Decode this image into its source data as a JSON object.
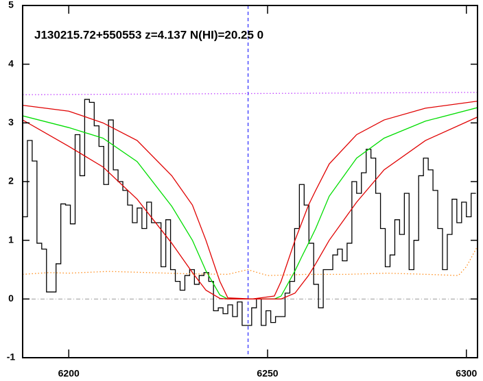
{
  "chart_data": {
    "type": "line",
    "title": "J130215.72+550553 z=4.137 N(HI)=20.25 0",
    "xlim": [
      6188.4,
      6302.8
    ],
    "ylim": [
      -1,
      5
    ],
    "xticks": [
      6200,
      6250,
      6300
    ],
    "yticks": [
      -1,
      0,
      1,
      2,
      3,
      4,
      5
    ],
    "series": [
      {
        "color": "#000000",
        "style": "step",
        "x": [
          6189.0,
          6190.2,
          6191.4,
          6192.6,
          6193.8,
          6195.0,
          6196.2,
          6197.4,
          6198.6,
          6199.8,
          6201.0,
          6202.2,
          6203.4,
          6204.6,
          6205.8,
          6207.0,
          6208.2,
          6209.4,
          6210.6,
          6211.8,
          6213.0,
          6214.2,
          6215.4,
          6216.6,
          6217.8,
          6219.0,
          6220.2,
          6221.4,
          6222.6,
          6223.8,
          6225.0,
          6226.2,
          6227.4,
          6228.6,
          6229.8,
          6231.0,
          6232.2,
          6233.4,
          6234.6,
          6235.8,
          6237.0,
          6238.2,
          6239.4,
          6240.6,
          6241.8,
          6243.0,
          6244.2,
          6245.4,
          6246.6,
          6247.8,
          6249.0,
          6250.2,
          6251.4,
          6252.6,
          6253.8,
          6255.0,
          6256.2,
          6257.4,
          6258.6,
          6259.8,
          6261.0,
          6262.2,
          6263.4,
          6264.6,
          6265.8,
          6267.0,
          6268.2,
          6269.4,
          6270.6,
          6271.8,
          6273.0,
          6274.2,
          6275.4,
          6276.6,
          6277.8,
          6279.0,
          6280.2,
          6281.4,
          6282.6,
          6283.8,
          6285.0,
          6286.2,
          6287.4,
          6288.6,
          6289.8,
          6291.0,
          6292.2,
          6293.4,
          6294.6,
          6295.8,
          6297.0,
          6298.2,
          6299.4,
          6300.6,
          6301.8
        ],
        "values": [
          1.4,
          2.7,
          2.35,
          0.95,
          0.85,
          0.12,
          0.12,
          0.6,
          1.62,
          1.6,
          1.28,
          2.8,
          2.1,
          3.4,
          3.35,
          2.95,
          2.6,
          1.95,
          3.05,
          2.2,
          2.0,
          1.85,
          1.6,
          1.3,
          1.55,
          1.2,
          1.65,
          1.3,
          1.3,
          0.55,
          1.35,
          0.5,
          0.3,
          0.15,
          0.4,
          0.5,
          0.25,
          0.4,
          0.45,
          0.3,
          -0.2,
          -0.15,
          -0.25,
          -0.1,
          -0.3,
          -0.05,
          -0.45,
          -0.45,
          -0.15,
          0.0,
          -0.45,
          -0.2,
          -0.4,
          -0.3,
          -0.3,
          0.1,
          0.3,
          1.2,
          1.95,
          1.6,
          0.95,
          0.25,
          -0.15,
          0.5,
          0.5,
          0.75,
          0.85,
          0.65,
          0.95,
          2.0,
          1.8,
          2.15,
          2.55,
          2.4,
          1.8,
          1.2,
          0.55,
          0.75,
          1.35,
          1.1,
          1.8,
          0.5,
          1.0,
          2.1,
          2.4,
          2.2,
          1.85,
          1.2,
          0.5,
          1.1,
          1.7,
          1.3,
          1.65,
          1.4,
          1.8
        ]
      },
      {
        "color": "#00dd00",
        "style": "solid",
        "x": [
          6188.4,
          6200,
          6208.6,
          6217.2,
          6225.9,
          6231.1,
          6234.5,
          6238,
          6240,
          6246,
          6251.7,
          6253.4,
          6256.9,
          6258.6,
          6260.3,
          6262.1,
          6265.5,
          6272.4,
          6279.3,
          6289.7,
          6302.8
        ],
        "values": [
          3.12,
          2.92,
          2.74,
          2.34,
          1.58,
          1.0,
          0.48,
          0.07,
          0,
          0,
          0,
          0.05,
          0.48,
          0.72,
          0.95,
          1.2,
          1.75,
          2.4,
          2.74,
          3.03,
          3.26
        ]
      },
      {
        "color": "#e00000",
        "style": "solid",
        "x": [
          6188.4,
          6200,
          6208.6,
          6217.2,
          6225.9,
          6231.1,
          6234.5,
          6238,
          6240,
          6246,
          6251.7,
          6253.4,
          6256.9,
          6258.6,
          6260.3,
          6262.1,
          6265.5,
          6272.4,
          6279.3,
          6289.7,
          6302.8
        ],
        "values": [
          3.3,
          3.2,
          3.0,
          2.7,
          2.1,
          1.6,
          1.0,
          0.3,
          0.02,
          0,
          0.05,
          0.3,
          1.0,
          1.3,
          1.6,
          1.85,
          2.3,
          2.8,
          3.05,
          3.25,
          3.37
        ]
      },
      {
        "color": "#e00000",
        "style": "solid",
        "x": [
          6188.4,
          6200,
          6208.6,
          6217.2,
          6225.9,
          6231.1,
          6234.5,
          6238,
          6240,
          6246,
          6251.7,
          6253.4,
          6256.9,
          6258.6,
          6260.3,
          6262.1,
          6265.5,
          6272.4,
          6279.3,
          6289.7,
          6302.8
        ],
        "values": [
          3.05,
          2.6,
          2.25,
          1.7,
          0.95,
          0.45,
          0.15,
          0.01,
          0,
          0,
          0,
          0,
          0.1,
          0.25,
          0.4,
          0.6,
          1.0,
          1.65,
          2.2,
          2.7,
          3.1
        ]
      },
      {
        "color": "#ff8c1a",
        "style": "dotted",
        "x": [
          6188.4,
          6195,
          6200,
          6210,
          6220,
          6230,
          6240,
          6245,
          6250,
          6260,
          6270,
          6280,
          6290,
          6298,
          6300,
          6302.8
        ],
        "values": [
          0.42,
          0.45,
          0.44,
          0.47,
          0.45,
          0.43,
          0.42,
          0.5,
          0.4,
          0.42,
          0.42,
          0.44,
          0.42,
          0.4,
          0.55,
          0.9
        ]
      },
      {
        "color": "#c040ff",
        "style": "dotted",
        "x": [
          6188.4,
          6302.8
        ],
        "values": [
          3.48,
          3.52
        ]
      }
    ],
    "hlines": [
      {
        "value": 0,
        "color": "#999999"
      }
    ],
    "vlines": [
      {
        "value": 6245.1,
        "color": "#0000ff"
      }
    ]
  }
}
